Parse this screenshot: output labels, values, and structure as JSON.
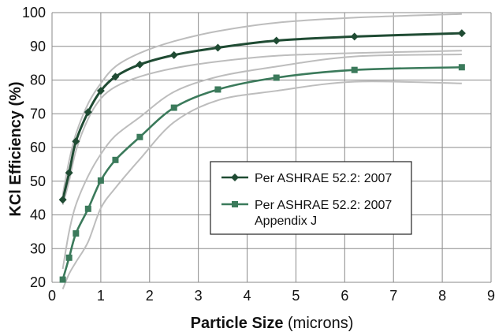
{
  "chart_data": {
    "type": "line",
    "xlabel_bold": "Particle Size",
    "xlabel_unit": " (microns)",
    "ylabel": "KCl Efficiency (%)",
    "xlim": [
      0,
      9
    ],
    "ylim": [
      20,
      100
    ],
    "xticks": [
      0,
      1,
      2,
      3,
      4,
      5,
      6,
      7,
      8,
      9
    ],
    "yticks": [
      20,
      30,
      40,
      50,
      60,
      70,
      80,
      90,
      100
    ],
    "grid": true,
    "legend_placement": "center-right",
    "series": [
      {
        "name": "Per ASHRAE 52.2: 2007",
        "color": "#1f4b33",
        "marker": "diamond",
        "x": [
          0.22,
          0.35,
          0.49,
          0.74,
          1.0,
          1.3,
          1.8,
          2.5,
          3.4,
          4.6,
          6.2,
          8.4
        ],
        "y": [
          44.5,
          52.5,
          61.8,
          70.5,
          76.8,
          81.0,
          84.6,
          87.4,
          89.6,
          91.7,
          92.9,
          93.9
        ]
      },
      {
        "name": "Per ASHRAE 52.2: 2007 Appendix J",
        "name_lines": [
          "Per ASHRAE 52.2: 2007",
          "Appendix J"
        ],
        "color": "#3b7a5b",
        "marker": "square",
        "x": [
          0.22,
          0.35,
          0.49,
          0.74,
          1.0,
          1.3,
          1.8,
          2.5,
          3.4,
          4.6,
          6.2,
          8.4
        ],
        "y": [
          20.8,
          27.3,
          34.5,
          41.8,
          50.2,
          56.3,
          63.1,
          71.8,
          77.2,
          80.7,
          83.0,
          83.8
        ]
      }
    ],
    "envelope_lines": {
      "color": "#bdbdbd",
      "lines": [
        {
          "x": [
            0.22,
            0.35,
            0.49,
            0.74,
            1.0,
            1.3,
            1.8,
            2.5,
            3.4,
            4.6,
            6.2,
            8.4
          ],
          "y": [
            46,
            56,
            64,
            73,
            79,
            84,
            88,
            91.5,
            94.5,
            97,
            98.5,
            99.6
          ]
        },
        {
          "x": [
            0.22,
            0.35,
            0.49,
            0.74,
            1.0,
            1.3,
            1.8,
            2.5,
            3.4,
            4.6,
            6.2,
            8.4
          ],
          "y": [
            43,
            50,
            59,
            68.5,
            74.5,
            78,
            81,
            83.5,
            85.5,
            87.2,
            88,
            88.7
          ]
        },
        {
          "x": [
            0.22,
            0.35,
            0.49,
            0.74,
            1.0,
            1.3,
            1.8,
            2.5,
            3.4,
            4.6,
            6.2,
            8.4
          ],
          "y": [
            24,
            35,
            43,
            51.5,
            58,
            63.5,
            69,
            76.5,
            81,
            84,
            87,
            87.6
          ]
        },
        {
          "x": [
            0.22,
            0.35,
            0.49,
            0.74,
            1.0,
            1.3,
            1.8,
            2.5,
            3.4,
            4.6,
            6.2,
            8.4
          ],
          "y": [
            18,
            22.5,
            26,
            32,
            42,
            48,
            56.5,
            67.5,
            74,
            76.8,
            79.5,
            79
          ]
        }
      ]
    }
  }
}
